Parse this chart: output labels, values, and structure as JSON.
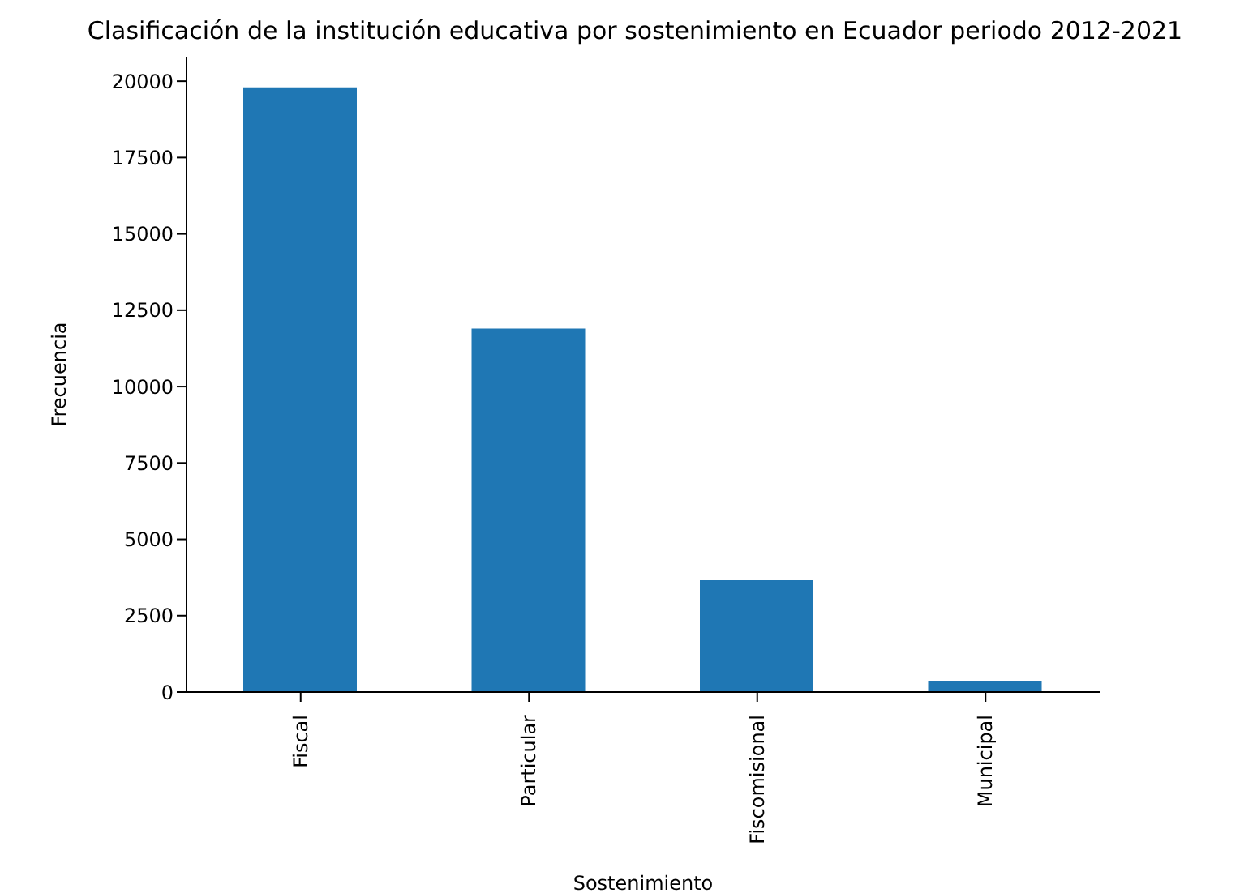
{
  "chart_data": {
    "type": "bar",
    "title": "Clasificación de la institución educativa por sostenimiento en Ecuador periodo 2012-2021",
    "xlabel": "Sostenimiento",
    "ylabel": "Frecuencia",
    "categories": [
      "Fiscal",
      "Particular",
      "Fiscomisional",
      "Municipal"
    ],
    "values": [
      19800,
      11900,
      3660,
      370
    ],
    "color": "#1f77b4",
    "ylim": [
      0,
      20800
    ],
    "yticks": [
      0,
      2500,
      5000,
      7500,
      10000,
      12500,
      15000,
      17500,
      20000
    ],
    "grid": false,
    "legend": false
  }
}
